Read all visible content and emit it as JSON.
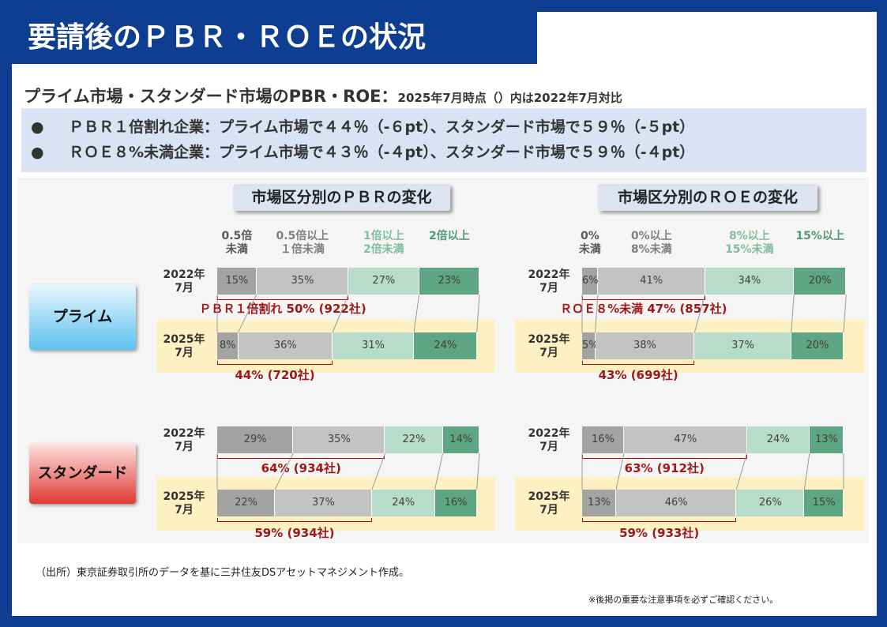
{
  "header": {
    "title": "要請後のＰＢＲ・ＲＯＥの状況",
    "subtitle": "プライム市場・スタンダード市場のPBR・ROE：",
    "subtitle_note": "2025年7月時点（）内は2022年7月対比"
  },
  "bullets": [
    "ＰＢＲ１倍割れ企業：プライム市場で４４％（-６pt）、スタンダード市場で５９％（-５pt）",
    "ＲＯＥ８%未満企業：プライム市場で４３％（-４pt）、スタンダード市場で５９％（-４pt）"
  ],
  "groups": [
    "プライム",
    "スタンダード"
  ],
  "chart_data": [
    {
      "type": "bar",
      "orientation": "horizontal",
      "stacked": true,
      "title": "市場区分別のＰＢＲの変化",
      "categories": [
        "2022年\n7月",
        "2025年\n7月",
        "2022年\n7月",
        "2025年\n7月"
      ],
      "xlim": [
        0,
        100
      ],
      "series": [
        {
          "name": "0.5倍\n未満",
          "color": "#a3a3a3",
          "values": [
            15,
            8,
            29,
            22
          ],
          "value_labels": [
            "15%",
            "8%",
            "29%",
            "22%"
          ]
        },
        {
          "name": "0.5倍以上\n１倍未満",
          "color": "#c3c3c3",
          "values": [
            35,
            36,
            35,
            37
          ],
          "value_labels": [
            "35%",
            "36%",
            "35%",
            "37%"
          ]
        },
        {
          "name": "1倍以上\n2倍未満",
          "color": "#b7dccb",
          "values": [
            27,
            31,
            22,
            24
          ],
          "value_labels": [
            "27%",
            "31%",
            "22%",
            "24%"
          ]
        },
        {
          "name": "2倍以上",
          "color": "#5ea584",
          "values": [
            23,
            24,
            14,
            16
          ],
          "value_labels": [
            "23%",
            "24%",
            "14%",
            "16%"
          ]
        }
      ],
      "annotations": [
        "ＰＢＲ１倍割れ 50% (922社)",
        "44% (720社)",
        "64% (934社)",
        "59% (934社)"
      ]
    },
    {
      "type": "bar",
      "orientation": "horizontal",
      "stacked": true,
      "title": "市場区分別のＲＯＥの変化",
      "categories": [
        "2022年\n7月",
        "2025年\n7月",
        "2022年\n7月",
        "2025年\n7月"
      ],
      "xlim": [
        0,
        100
      ],
      "series": [
        {
          "name": "0%\n未満",
          "color": "#a3a3a3",
          "values": [
            6,
            5,
            16,
            13
          ],
          "value_labels": [
            "6%",
            "5%",
            "16%",
            "13%"
          ]
        },
        {
          "name": "0%以上\n8%未満",
          "color": "#c3c3c3",
          "values": [
            41,
            38,
            47,
            46
          ],
          "value_labels": [
            "41%",
            "38%",
            "47%",
            "46%"
          ]
        },
        {
          "name": "8%以上\n15%未満",
          "color": "#b7dccb",
          "values": [
            34,
            37,
            24,
            26
          ],
          "value_labels": [
            "34%",
            "37%",
            "24%",
            "26%"
          ]
        },
        {
          "name": "15%以上",
          "color": "#5ea584",
          "values": [
            20,
            20,
            13,
            15
          ],
          "value_labels": [
            "20%",
            "20%",
            "13%",
            "15%"
          ]
        }
      ],
      "annotations": [
        "ＲＯＥ８%未満 47% (857社)",
        "43% (699社)",
        "63% (912社)",
        "59% (933社)"
      ]
    }
  ],
  "footer": {
    "source": "（出所）東京証券取引所のデータを基に三井住友DSアセットマネジメント作成。",
    "notice": "※後掲の重要な注意事項を必ずご確認ください。"
  }
}
